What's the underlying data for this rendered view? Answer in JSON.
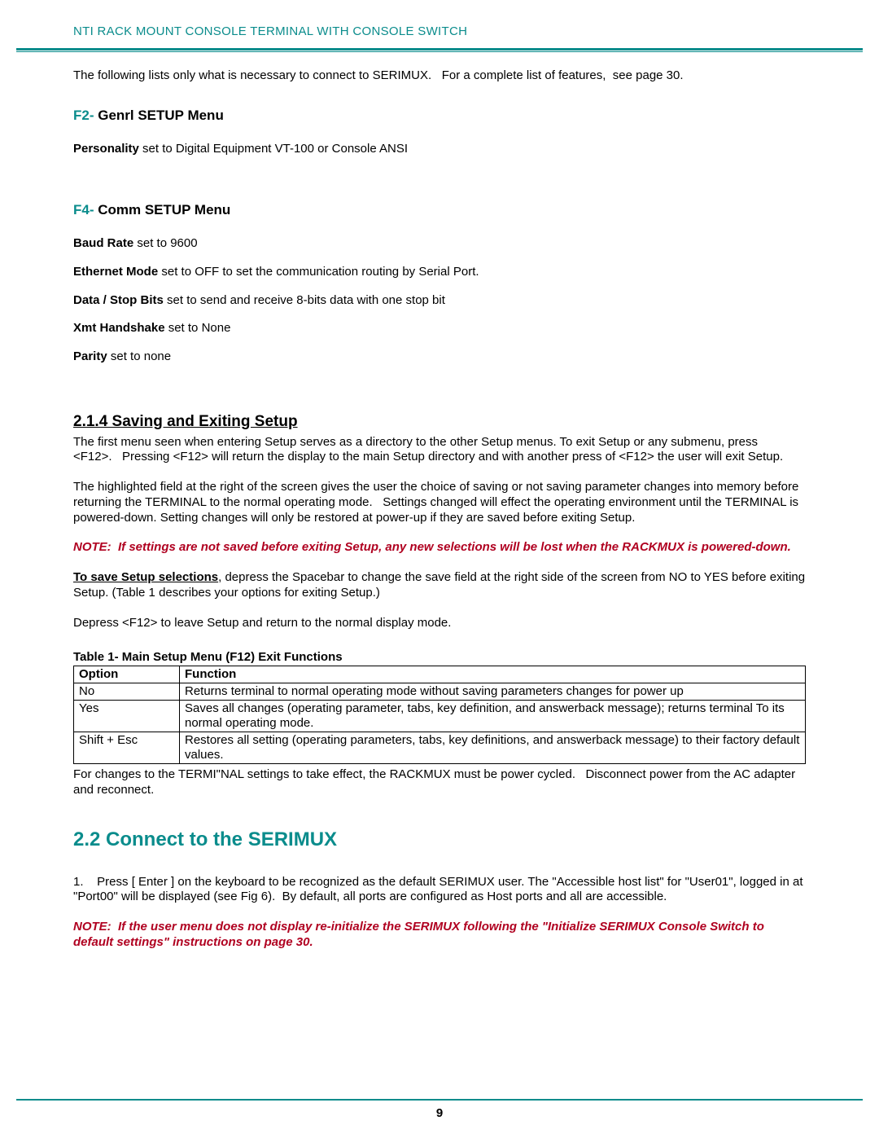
{
  "colors": {
    "teal": "#0a8c8c",
    "red": "#b00020",
    "text": "#000000",
    "background": "#ffffff"
  },
  "header": {
    "title": "NTI RACK MOUNT CONSOLE TERMINAL WITH CONSOLE SWITCH"
  },
  "intro": "The following lists only what is necessary to connect to SERIMUX.   For a complete list of features,  see page 30.",
  "f2": {
    "prefix": "F2-",
    "title": " Genrl SETUP Menu",
    "line_bold": "Personality",
    "line_rest": "  set to Digital Equipment VT-100 or  Console ANSI"
  },
  "f4": {
    "prefix": "F4-",
    "title": " Comm SETUP Menu",
    "items": [
      {
        "bold": "Baud Rate",
        "rest": " set to 9600"
      },
      {
        "bold": "Ethernet Mode",
        "rest": " set to OFF to set the communication routing by Serial Port."
      },
      {
        "bold": "Data / Stop Bits",
        "rest": " set to send and receive 8-bits data with one stop bit"
      },
      {
        "bold": "Xmt Handshake",
        "rest": " set to None"
      },
      {
        "bold": "Parity",
        "rest": " set to none"
      }
    ]
  },
  "saving": {
    "heading": "2.1.4 Saving and Exiting Setup",
    "p1": "The first menu seen when entering Setup serves as a directory to the other Setup menus. To exit Setup or any submenu, press <F12>.   Pressing <F12> will return the display to the main Setup directory and with another press of <F12> the user will exit Setup.",
    "p2": "The highlighted field at the right of the screen gives the user the choice of saving or not saving parameter changes into memory before returning the TERMINAL to the normal operating mode.   Settings changed will effect the operating environment until the TERMINAL is powered-down. Setting changes will only be restored at power-up if they are saved before exiting Setup.",
    "note": "NOTE:  If settings are not saved before exiting Setup, any new selections will be lost when the RACKMUX is powered-down.",
    "save_bold": "To save Setup selections",
    "save_rest": ", depress the Spacebar to change the save field at the right side of the screen from NO to YES before exiting Setup. (Table 1 describes your options for exiting Setup.)",
    "p3": "Depress <F12> to leave Setup and return to the normal display mode."
  },
  "table": {
    "caption": "Table 1- Main Setup Menu (F12) Exit Functions",
    "columns": [
      "Option",
      "Function"
    ],
    "rows": [
      [
        "No",
        "Returns terminal to normal operating mode without saving parameters changes for power up"
      ],
      [
        "Yes",
        "Saves all changes (operating parameter, tabs, key definition, and answerback message); returns terminal To its normal operating mode."
      ],
      [
        "Shift + Esc",
        "Restores all setting (operating parameters, tabs, key definitions, and answerback message) to their factory default values."
      ]
    ],
    "after": "For changes to the TERMI\"NAL settings to take effect, the RACKMUX must be power cycled.   Disconnect power from the AC adapter and reconnect."
  },
  "connect": {
    "heading": "2.2 Connect to the SERIMUX",
    "p1": "1.    Press [ Enter ] on the keyboard to be recognized as the default SERIMUX user. The \"Accessible host list\" for \"User01\", logged in at \"Port00\" will be displayed (see Fig 6).  By default, all ports are configured as Host ports and all are accessible.",
    "note": "NOTE:  If the user menu does not display re-initialize the SERIMUX following the \"Initialize SERIMUX Console Switch to default settings\" instructions on page 30."
  },
  "pageNumber": "9"
}
